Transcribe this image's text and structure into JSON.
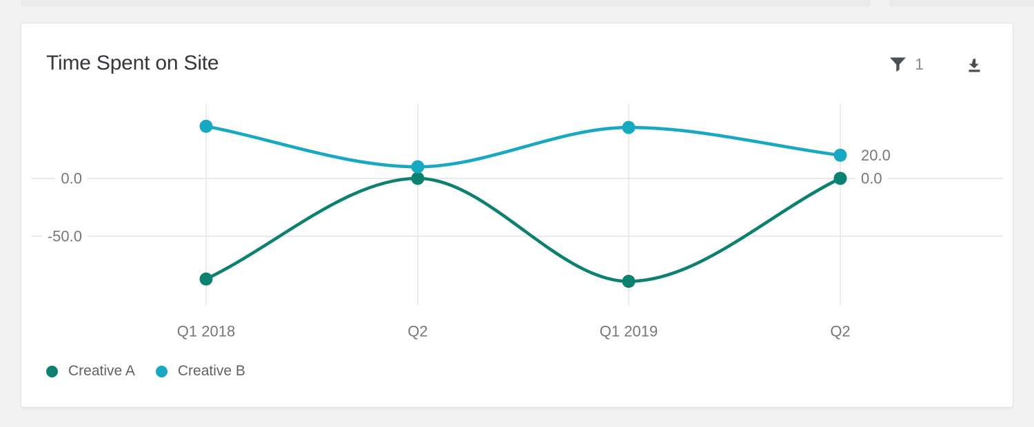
{
  "header": {
    "title": "Time Spent on Site",
    "filter_count": "1"
  },
  "icons": {
    "filter": "funnel-icon",
    "download": "download-icon"
  },
  "chart_data": {
    "type": "line",
    "title": "Time Spent on Site",
    "categories": [
      "Q1 2018",
      "Q2",
      "Q1 2019",
      "Q2"
    ],
    "series": [
      {
        "name": "Creative A",
        "color": "#0d8170",
        "values": [
          -87,
          0,
          -89,
          0
        ],
        "end_label": "0.0"
      },
      {
        "name": "Creative B",
        "color": "#16a9c1",
        "values": [
          45,
          10,
          44,
          20
        ],
        "end_label": "20.0"
      }
    ],
    "y_ticks": [
      {
        "value": 0,
        "label": "0.0"
      },
      {
        "value": -50,
        "label": "-50.0"
      }
    ],
    "ylim": [
      -110,
      65
    ],
    "grid": true,
    "smoothing": "monotone",
    "legend_position": "bottom-left",
    "xlabel": "",
    "ylabel": ""
  },
  "colors": {
    "grid": "#e3e3e4",
    "axis_text": "#74777c",
    "icon": "#4c4f54",
    "card_background": "#ffffff",
    "page_background": "#f2f2f3"
  }
}
